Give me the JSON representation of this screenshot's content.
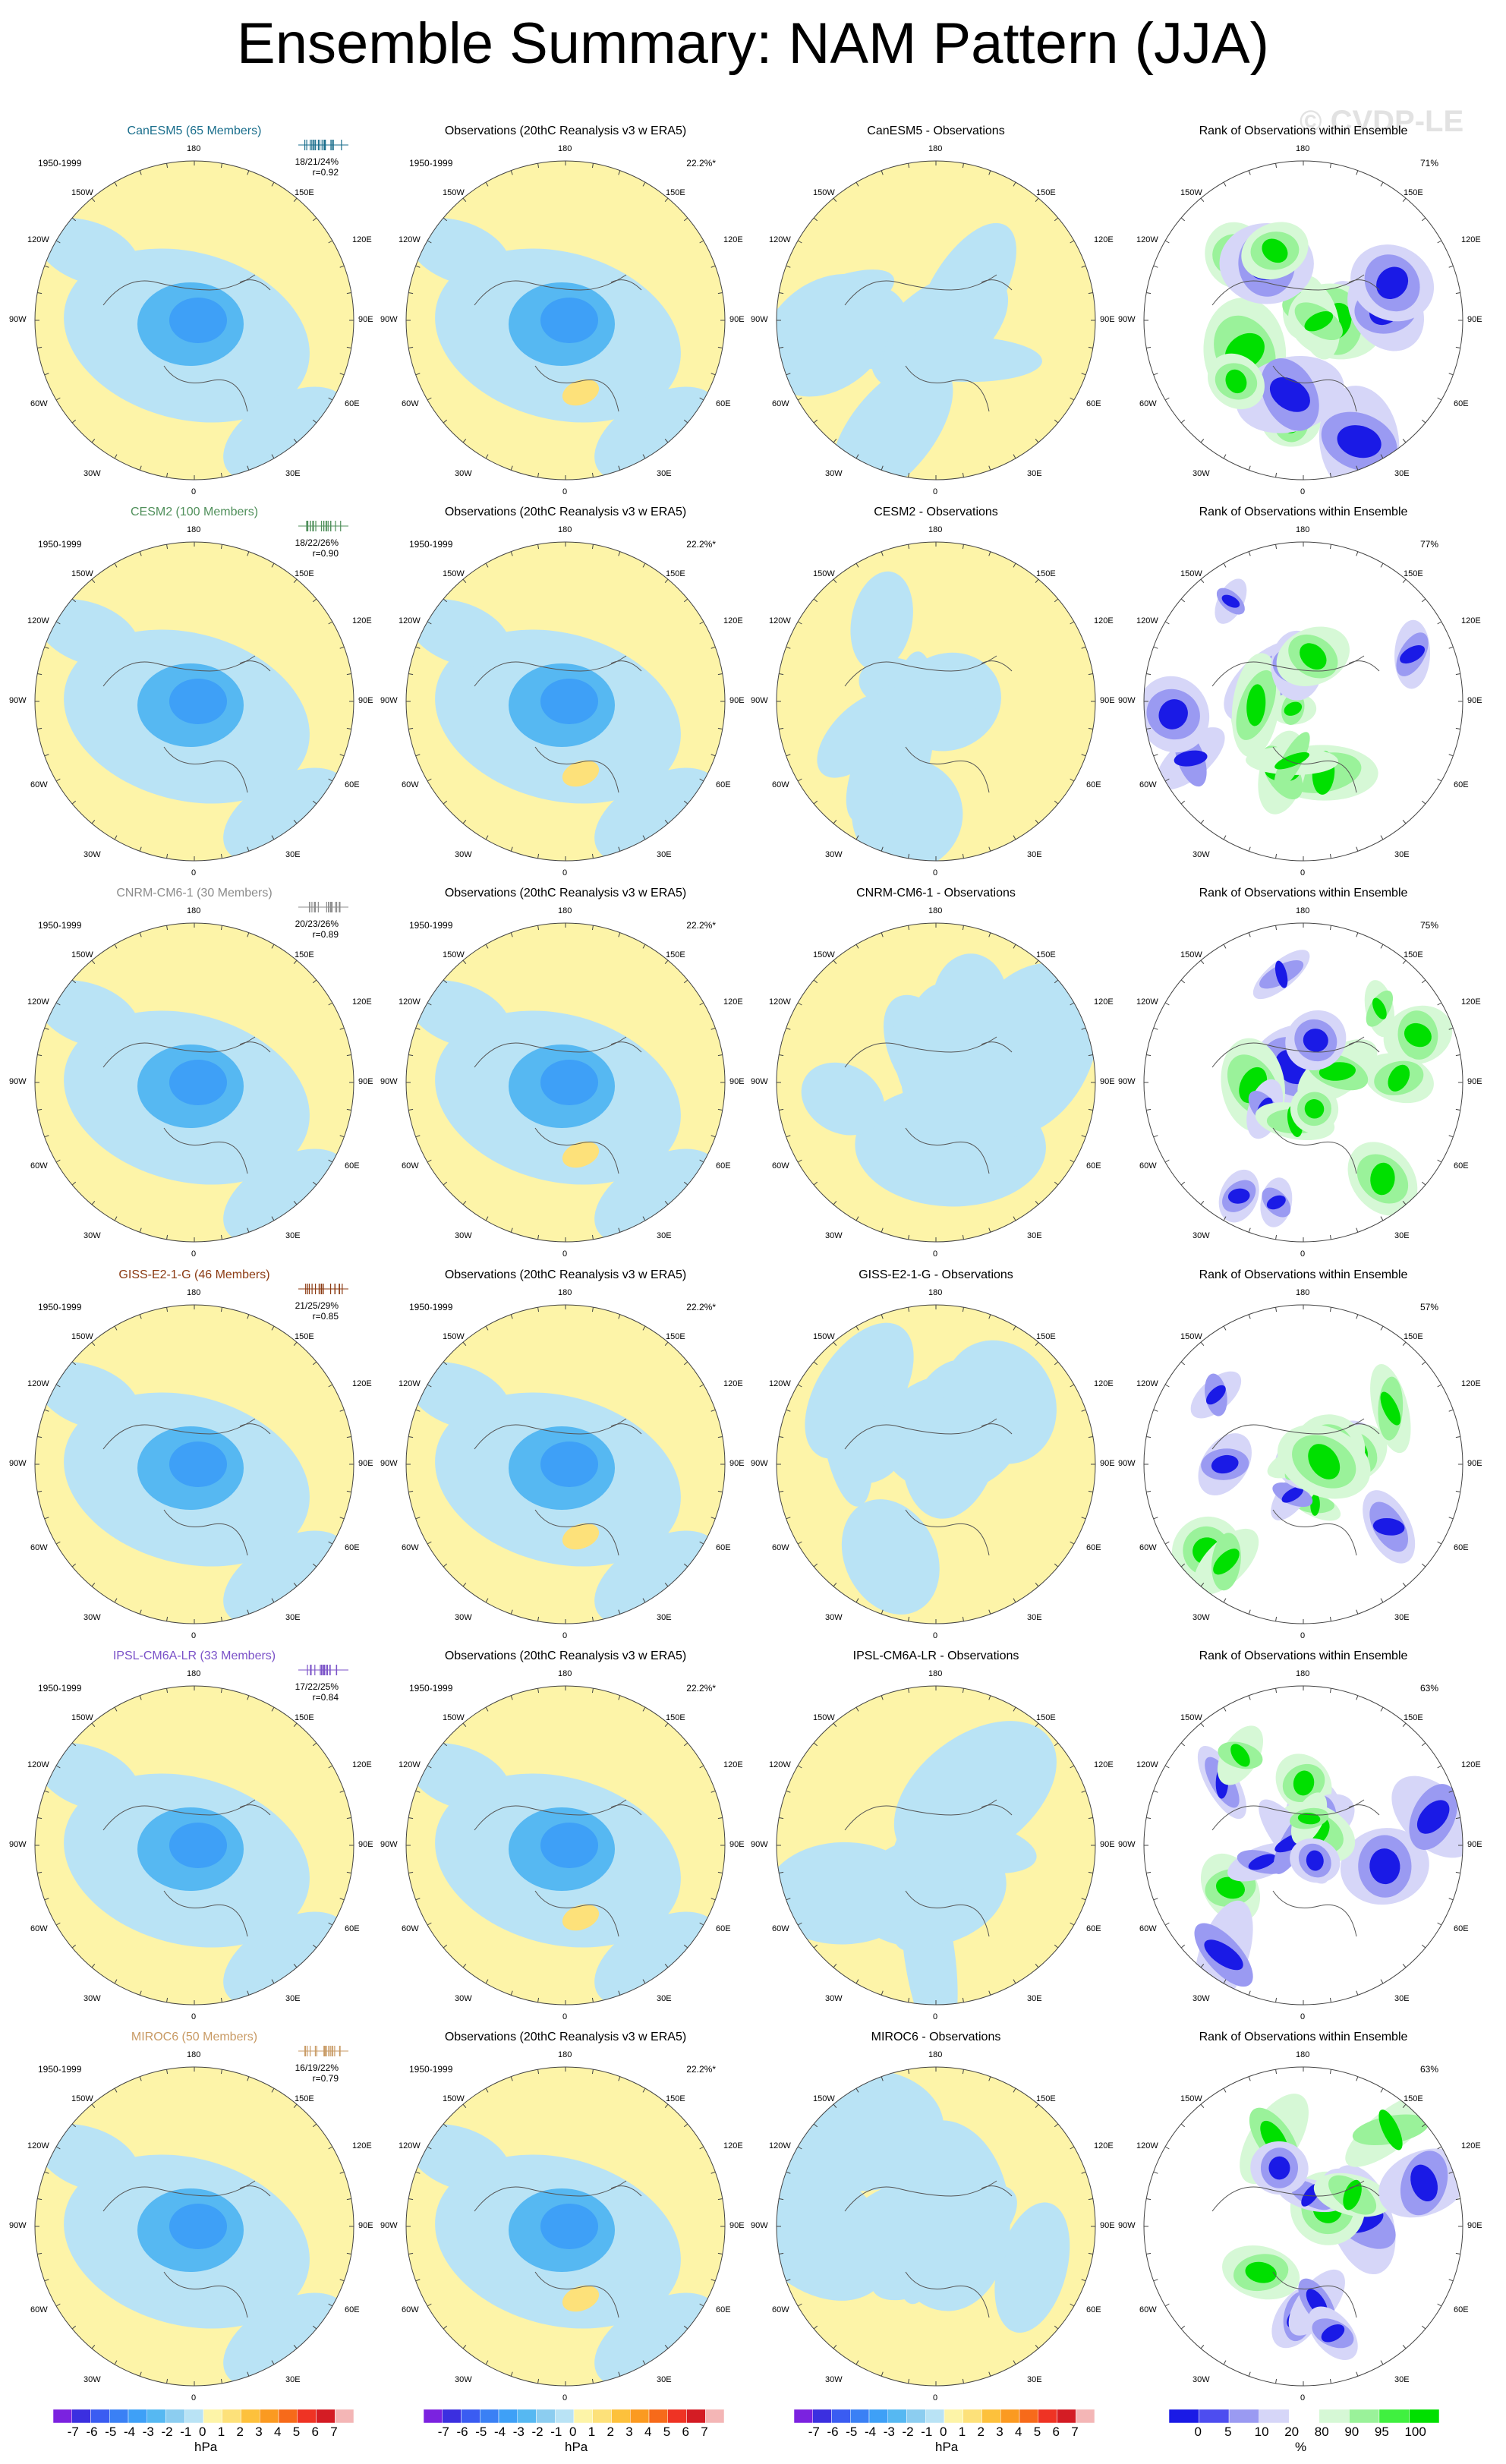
{
  "title": "Ensemble Summary: NAM Pattern (JJA)",
  "watermark": "© CVDP-LE",
  "period": "1950-1999",
  "obs_title": "Observations (20thC Reanalysis v3 w ERA5)",
  "obs_pct": "22.2%*",
  "rank_title": "Rank of Observations within Ensemble",
  "longitude_labels": {
    "top": "180",
    "bottom": "0",
    "left": "90W",
    "right": "90E",
    "ul1": "150W",
    "ul2": "120W",
    "ll1": "60W",
    "ll2": "30W",
    "ur1": "150E",
    "ur2": "120E",
    "lr1": "60E",
    "lr2": "30E"
  },
  "rows": [
    {
      "model": "CanESM5 (65 Members)",
      "color": "#1a6e8c",
      "stats": "18/21/24%",
      "corr": "r=0.92",
      "diff_title": "CanESM5 - Observations",
      "rank_pct": "71%"
    },
    {
      "model": "CESM2 (100 Members)",
      "color": "#4f8f5a",
      "stats": "18/22/26%",
      "corr": "r=0.90",
      "diff_title": "CESM2 - Observations",
      "rank_pct": "77%"
    },
    {
      "model": "CNRM-CM6-1 (30 Members)",
      "color": "#8c8c8c",
      "stats": "20/23/26%",
      "corr": "r=0.89",
      "diff_title": "CNRM-CM6-1 - Observations",
      "rank_pct": "75%"
    },
    {
      "model": "GISS-E2-1-G (46 Members)",
      "color": "#8b3a12",
      "stats": "21/25/29%",
      "corr": "r=0.85",
      "diff_title": "GISS-E2-1-G - Observations",
      "rank_pct": "57%"
    },
    {
      "model": "IPSL-CM6A-LR (33 Members)",
      "color": "#7b52c8",
      "stats": "17/22/25%",
      "corr": "r=0.84",
      "diff_title": "IPSL-CM6A-LR - Observations",
      "rank_pct": "63%"
    },
    {
      "model": "MIROC6 (50 Members)",
      "color": "#c89a64",
      "stats": "16/19/22%",
      "corr": "r=0.79",
      "diff_title": "MIROC6 - Observations",
      "rank_pct": "63%"
    }
  ],
  "colorbar_hpa": {
    "labels": [
      "-7",
      "-6",
      "-5",
      "-4",
      "-3",
      "-2",
      "-1",
      "0",
      "1",
      "2",
      "3",
      "4",
      "5",
      "6",
      "7"
    ],
    "colors": [
      "#7b22e0",
      "#3b2fe0",
      "#3a5cf2",
      "#3a80f5",
      "#3ea0f7",
      "#56b8f2",
      "#8ccdf0",
      "#b9e3f5",
      "#fdf4a8",
      "#fde17a",
      "#fdc13c",
      "#fb9a21",
      "#f76a1a",
      "#ef3324",
      "#d41c24",
      "#f4b6b6"
    ],
    "unit": "hPa"
  },
  "colorbar_rank": {
    "labels": [
      "0",
      "5",
      "10",
      "20",
      "80",
      "90",
      "95",
      "100"
    ],
    "colors": [
      "#1a1ae6",
      "#4d4df0",
      "#9a9af2",
      "#d6d6f8",
      "#ffffff",
      "#d6f8d6",
      "#9af29a",
      "#40f040",
      "#00e000"
    ],
    "unit": "%"
  }
}
